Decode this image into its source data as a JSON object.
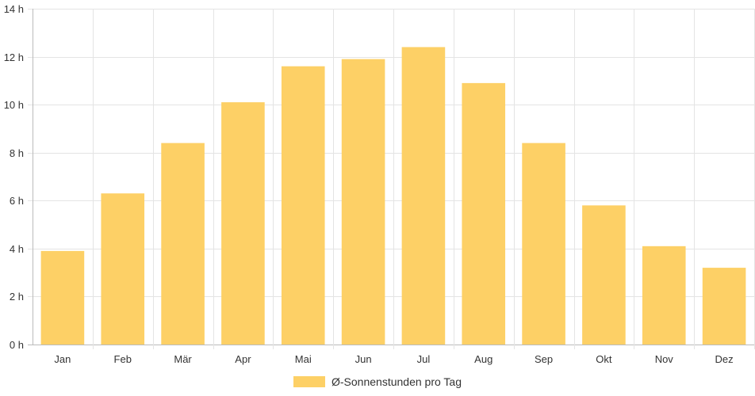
{
  "chart_data": {
    "type": "bar",
    "categories": [
      "Jan",
      "Feb",
      "Mär",
      "Apr",
      "Mai",
      "Jun",
      "Jul",
      "Aug",
      "Sep",
      "Okt",
      "Nov",
      "Dez"
    ],
    "series": [
      {
        "name": "Ø-Sonnenstunden pro Tag",
        "values": [
          3.9,
          6.3,
          8.4,
          10.1,
          11.6,
          11.9,
          12.4,
          10.9,
          8.4,
          5.8,
          4.1,
          3.2
        ],
        "color": "#fdd066"
      }
    ],
    "ylim": [
      0,
      14
    ],
    "y_ticks": [
      "0 h",
      "2 h",
      "4 h",
      "6 h",
      "8 h",
      "10 h",
      "12 h",
      "14 h"
    ],
    "grid": true,
    "legend_position": "bottom"
  }
}
